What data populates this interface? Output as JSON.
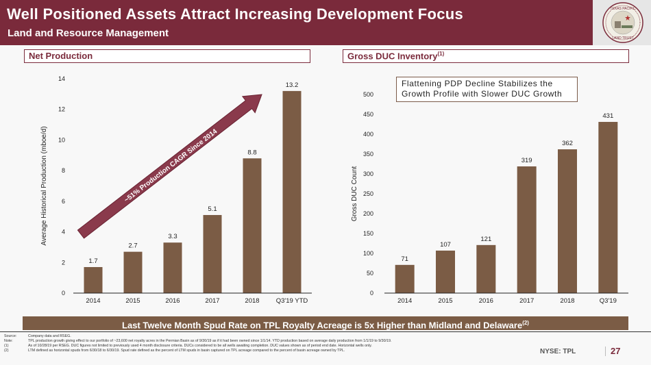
{
  "header": {
    "title": "Well Positioned Assets Attract Increasing Development Focus",
    "subtitle": "Land and Resource Management",
    "logo_label": "TEXAS PACIFIC LAND TRUST"
  },
  "colors": {
    "brand": "#7a2a3b",
    "bar": "#7b5c45",
    "arrow": "#8a3a4c"
  },
  "left_section": {
    "title": "Net Production"
  },
  "right_section": {
    "title": "Gross DUC Inventory",
    "footnote_ref": "(1)"
  },
  "annotation": {
    "arrow_text": "~51% Production CAGR Since 2014",
    "box_line1": "Flattening PDP Decline Stabilizes the",
    "box_line2": "Growth Profile with Slower DUC Growth"
  },
  "chart_data": [
    {
      "type": "bar",
      "title": "Net Production",
      "xlabel": "",
      "ylabel": "Average Historical Production (mboe/d)",
      "categories": [
        "2014",
        "2015",
        "2016",
        "2017",
        "2018",
        "Q3'19 YTD"
      ],
      "values": [
        1.7,
        2.7,
        3.3,
        5.1,
        8.8,
        13.2
      ],
      "value_labels": [
        "1.7",
        "2.7",
        "3.3",
        "5.1",
        "8.8",
        "13.2"
      ],
      "ylim": [
        0,
        14
      ],
      "yticks": [
        0,
        2,
        4,
        6,
        8,
        10,
        12,
        14
      ],
      "grid": false,
      "legend": "none"
    },
    {
      "type": "bar",
      "title": "Gross DUC Inventory",
      "xlabel": "",
      "ylabel": "Gross DUC Count",
      "categories": [
        "2014",
        "2015",
        "2016",
        "2017",
        "2018",
        "Q3'19"
      ],
      "values": [
        71,
        107,
        121,
        319,
        362,
        431
      ],
      "value_labels": [
        "71",
        "107",
        "121",
        "319",
        "362",
        "431"
      ],
      "ylim": [
        0,
        500
      ],
      "yticks": [
        0,
        50,
        100,
        150,
        200,
        250,
        300,
        350,
        400,
        450,
        500
      ],
      "grid": false,
      "legend": "none"
    }
  ],
  "banner": {
    "text": "Last Twelve Month Spud Rate on TPL Royalty Acreage is 5x Higher than Midland and Delaware",
    "footnote_ref": "(2)"
  },
  "notes": [
    {
      "key": "Source:",
      "text": "Company data and RSEG."
    },
    {
      "key": "Note:",
      "text": "TPL production growth giving effect to our portfolio of ~23,600 net royalty acres in the Permian Basin as of 9/30/19 as if it had been owned since 1/1/14. YTD production based on average daily production from 1/1/19 to 9/30/19."
    },
    {
      "key": "(1)",
      "text": "As of 10/28/19 per RSEG. DUC figures not limited to previously used 4 month disclosure criteria. DUCs considered to be all wells awaiting completion. DUC values shown as of period end date. Horizontal wells only."
    },
    {
      "key": "(2)",
      "text": "LTM defined as horizontal spuds from 6/30/18 to 6/30/19. Spud rate defined as the percent of LTM spuds in basin captured on TPL acreage compared to the percent of basin acreage owned by TPL."
    }
  ],
  "footer": {
    "ticker": "NYSE: TPL",
    "page_number": "27"
  }
}
